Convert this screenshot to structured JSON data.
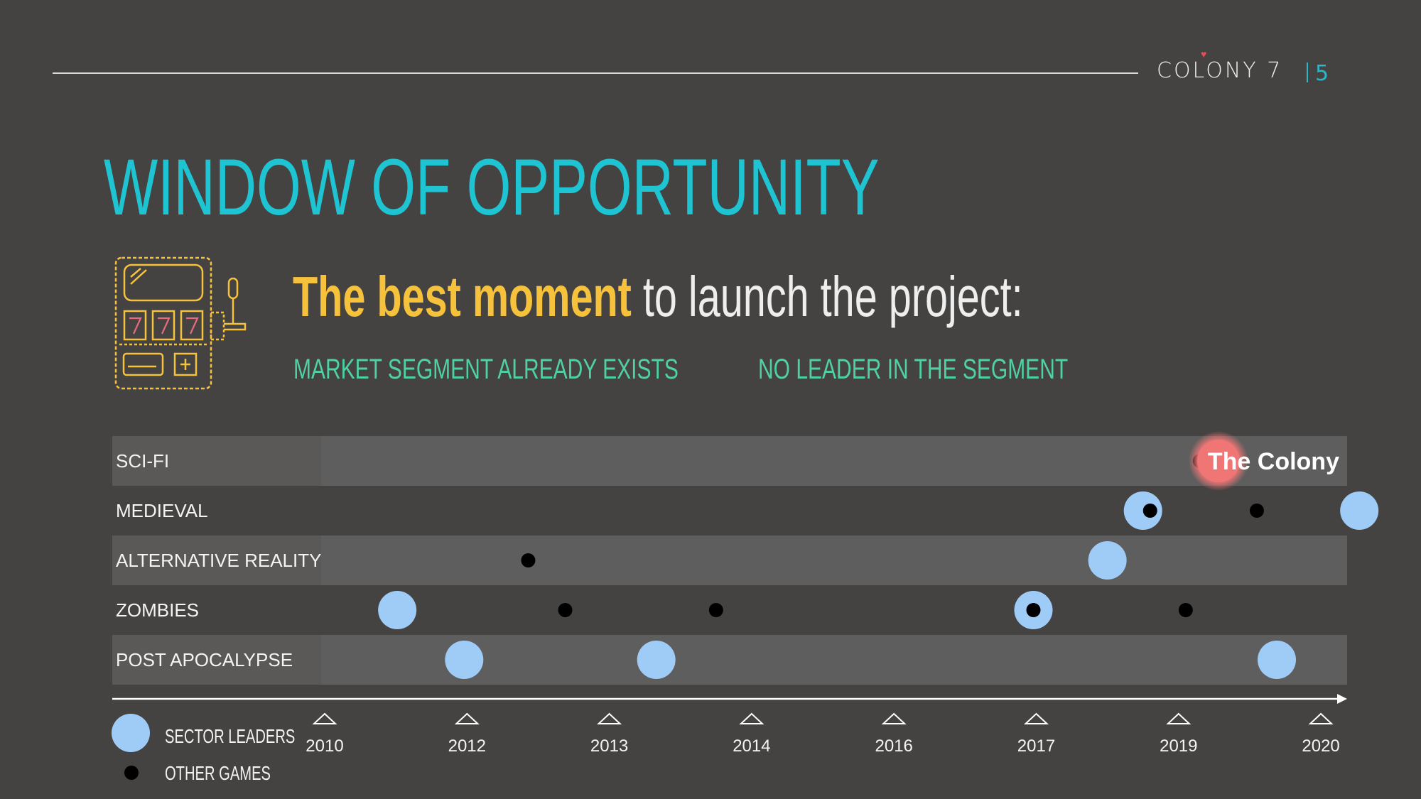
{
  "header": {
    "brand": "COLONY 7",
    "page_number": "5"
  },
  "title": "WINDOW OF OPPORTUNITY",
  "icon": "slot-machine-icon",
  "headline": {
    "highlight": "The best moment",
    "rest": "to launch the project:"
  },
  "subtitles": {
    "left": "MARKET SEGMENT ALREADY EXISTS",
    "right": "NO LEADER IN THE SEGMENT"
  },
  "colors": {
    "background": "#454342",
    "title": "#1ec4d2",
    "highlight": "#f6c13b",
    "subtitle": "#4fd0a5",
    "leader_dot": "#9fccf7",
    "other_dot": "#000000",
    "target_dot": "#f07575"
  },
  "legend": {
    "leaders": "SECTOR LEADERS",
    "others": "OTHER GAMES"
  },
  "chart_data": {
    "type": "scatter",
    "title": "",
    "x_ticks": [
      "2010",
      "2012",
      "2013",
      "2014",
      "2016",
      "2017",
      "2019",
      "2020"
    ],
    "categories": [
      "SCI-FI",
      "MEDIEVAL",
      "ALTERNATIVE REALITY",
      "ZOMBIES",
      "POST APOCALYPSE"
    ],
    "series": [
      {
        "name": "SECTOR LEADERS",
        "points": [
          {
            "category": "MEDIEVAL",
            "x": 5.75
          },
          {
            "category": "MEDIEVAL",
            "x": 7.27
          },
          {
            "category": "ALTERNATIVE REALITY",
            "x": 5.5
          },
          {
            "category": "ZOMBIES",
            "x": 0.51
          },
          {
            "category": "ZOMBIES",
            "x": 4.98
          },
          {
            "category": "POST APOCALYPSE",
            "x": 0.98
          },
          {
            "category": "POST APOCALYPSE",
            "x": 2.33
          },
          {
            "category": "POST APOCALYPSE",
            "x": 6.69
          }
        ]
      },
      {
        "name": "OTHER GAMES",
        "points": [
          {
            "category": "SCI-FI",
            "x": 6.15
          },
          {
            "category": "SCI-FI",
            "x": 6.36
          },
          {
            "category": "MEDIEVAL",
            "x": 5.8
          },
          {
            "category": "MEDIEVAL",
            "x": 6.55
          },
          {
            "category": "ALTERNATIVE REALITY",
            "x": 1.43
          },
          {
            "category": "ZOMBIES",
            "x": 1.69
          },
          {
            "category": "ZOMBIES",
            "x": 2.75
          },
          {
            "category": "ZOMBIES",
            "x": 4.98
          },
          {
            "category": "ZOMBIES",
            "x": 6.05
          }
        ]
      },
      {
        "name": "The Colony",
        "points": [
          {
            "category": "SCI-FI",
            "x": 6.28
          }
        ]
      }
    ]
  }
}
